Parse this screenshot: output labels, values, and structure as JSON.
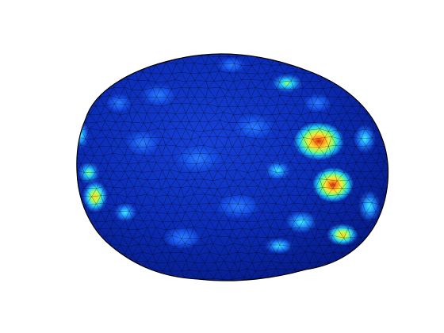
{
  "figure": {
    "colormap": "jet",
    "background_color": "#ffffff",
    "edge_color": "#000000",
    "base_color": "#0a2ab0",
    "hotspot_colors": [
      "#2f7bff",
      "#20d8ff",
      "#8dff6a",
      "#ffe83a",
      "#ff9a1a",
      "#d0241a"
    ],
    "mesh": "triangulated"
  }
}
